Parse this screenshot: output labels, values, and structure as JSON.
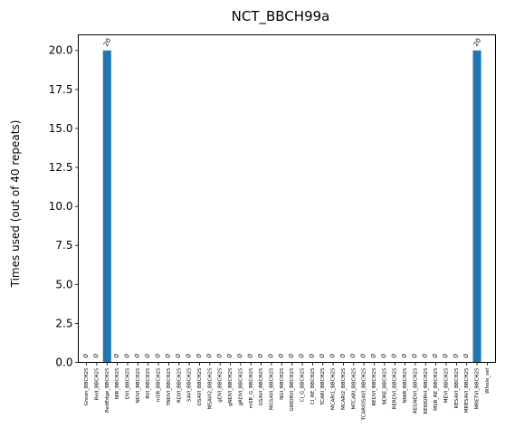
{
  "chart_data": {
    "type": "bar",
    "title": "NCT_BBCH99a",
    "xlabel": "",
    "ylabel": "Times used (out of 40 repeats)",
    "ylim": [
      0,
      21
    ],
    "yticks": [
      0.0,
      2.5,
      5.0,
      7.5,
      10.0,
      12.5,
      15.0,
      17.5,
      20.0
    ],
    "ytick_labels": [
      "0.0",
      "2.5",
      "5.0",
      "7.5",
      "10.0",
      "12.5",
      "15.0",
      "17.5",
      "20.0"
    ],
    "bar_color": "#1f77b4",
    "grid": false,
    "categories": [
      "Green_BBCH25",
      "Red_BBCH25",
      "RedEdge_BBCH25",
      "NIR_BBCH25",
      "DVI_BBCH25",
      "NDVI_BBCH25",
      "RVI_BBCH25",
      "mSR_BBCH25",
      "TNDVI_BBCH25",
      "RDVI_BBCH25",
      "SAVI_BBCH25",
      "OSAVI_BBCH25",
      "MSAVI2_BBCH25",
      "gDVI_BBCH25",
      "gNDVI_BBCH25",
      "gRDVI_BBCH25",
      "mSR_G_BBCH25",
      "GSAVI_BBCH25",
      "MGSAVI_BBCH25",
      "NGI_BBCH25",
      "GWDRVI_BBCH25",
      "CI_G_BBCH25",
      "CI_RE_BBCH25",
      "TCARI_BBCH25",
      "MCARI1_BBCH25",
      "MCARI2_BBCH25",
      "MTCARI_BBCH25",
      "TCARIOSAVI_BBCH25",
      "REDVI_BBCH25",
      "NDRE_BBCH25",
      "RERDVI_BBCH25",
      "NNIR_BBCH25",
      "REGNDVI_BBCH25",
      "REWDRVI_BBCH25",
      "MSR_RE_BBCH25",
      "MEVI_BBCH25",
      "RESAVI_BBCH25",
      "MRESAVI_BBCH25",
      "MRETVI_BBCH25",
      "Whole_set"
    ],
    "values": [
      0,
      0,
      20,
      0,
      0,
      0,
      0,
      0,
      0,
      0,
      0,
      0,
      0,
      0,
      0,
      0,
      0,
      0,
      0,
      0,
      0,
      0,
      0,
      0,
      0,
      0,
      0,
      0,
      0,
      0,
      0,
      0,
      0,
      0,
      0,
      0,
      0,
      0,
      20,
      0
    ],
    "value_labels": [
      "0",
      "0",
      "20",
      "0",
      "0",
      "0",
      "0",
      "0",
      "0",
      "0",
      "0",
      "0",
      "0",
      "0",
      "0",
      "0",
      "0",
      "0",
      "0",
      "0",
      "0",
      "0",
      "0",
      "0",
      "0",
      "0",
      "0",
      "0",
      "0",
      "0",
      "0",
      "0",
      "0",
      "0",
      "0",
      "0",
      "0",
      "0",
      "20",
      ""
    ]
  }
}
